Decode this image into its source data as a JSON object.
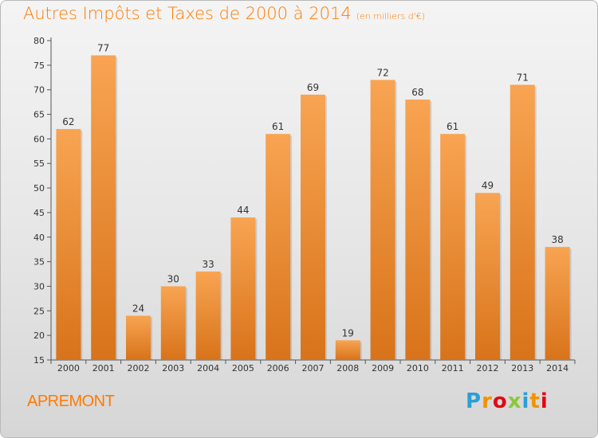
{
  "title": "Autres Impôts et Taxes de 2000 à 2014",
  "subtitle": "(en milliers d'€)",
  "commune": "APREMONT",
  "logo": {
    "text": "Proxiti",
    "letter_colors": [
      "#2a9fd6",
      "#f39200",
      "#e30613",
      "#8cc63f",
      "#2a9fd6",
      "#f39200",
      "#e30613"
    ]
  },
  "colors": {
    "title": "#ff7a00",
    "bar_light": "#f8a452",
    "bar_dark": "#d8731a",
    "grid": "#555555"
  },
  "chart_data": {
    "type": "bar",
    "categories": [
      "2000",
      "2001",
      "2002",
      "2003",
      "2004",
      "2005",
      "2006",
      "2007",
      "2008",
      "2009",
      "2010",
      "2011",
      "2012",
      "2013",
      "2014"
    ],
    "values": [
      62,
      77,
      24,
      30,
      33,
      44,
      61,
      69,
      19,
      72,
      68,
      61,
      49,
      71,
      38
    ],
    "ylim": [
      15,
      80
    ],
    "yticks": [
      15,
      20,
      25,
      30,
      35,
      40,
      45,
      50,
      55,
      60,
      65,
      70,
      75,
      80
    ],
    "data_labels": [
      "62",
      "77",
      "24",
      "30",
      "33",
      "44",
      "61",
      "69",
      "19",
      "72",
      "68",
      "61",
      "49",
      "71",
      "38"
    ],
    "xlabel": "",
    "ylabel": "",
    "grid": false,
    "legend": "none"
  }
}
